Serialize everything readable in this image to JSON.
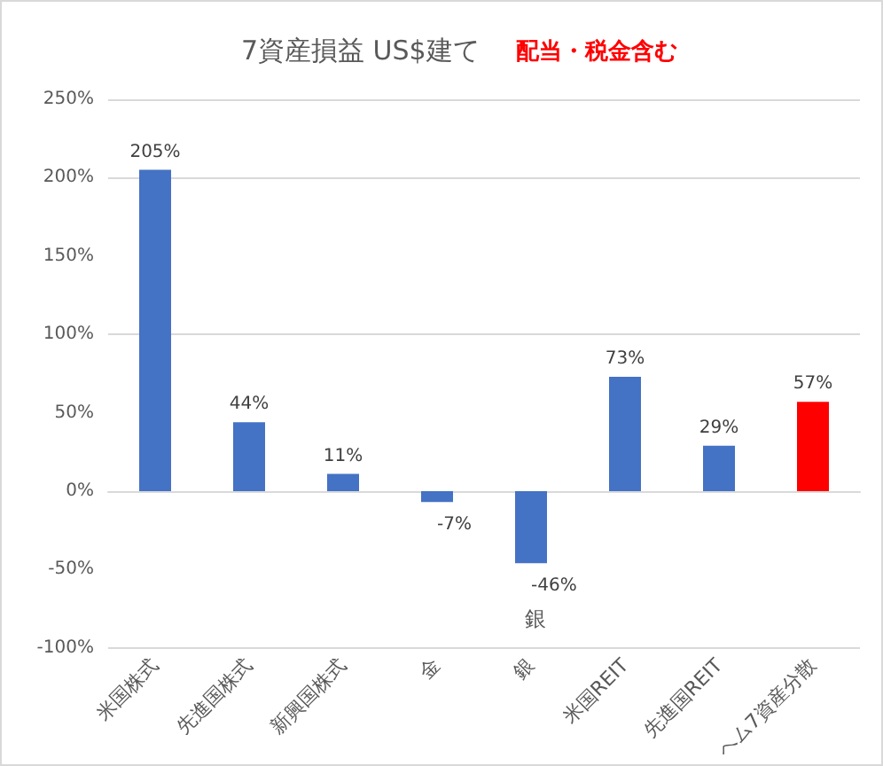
{
  "chart_data": {
    "type": "bar",
    "title": "7資産損益 US$建て",
    "subtitle": "配当・税金含む",
    "categories": [
      "米国株式",
      "先進国株式",
      "新興国株式",
      "金",
      "銀",
      "米国REIT",
      "先進国REIT",
      "ヘム7資産分散"
    ],
    "values": [
      205,
      44,
      11,
      -7,
      -46,
      73,
      29,
      57
    ],
    "colors": [
      "#4472c4",
      "#4472c4",
      "#4472c4",
      "#4472c4",
      "#4472c4",
      "#4472c4",
      "#4472c4",
      "#ff0000"
    ],
    "value_labels": [
      "205%",
      "44%",
      "11%",
      "-7%",
      "-46%",
      "73%",
      "29%",
      "57%"
    ],
    "ylim": [
      -100,
      250
    ],
    "yticks": [
      {
        "value": -100,
        "label": "-100%"
      },
      {
        "value": -50,
        "label": "-50%"
      },
      {
        "value": 0,
        "label": "0%"
      },
      {
        "value": 50,
        "label": "50%"
      },
      {
        "value": 100,
        "label": "100%"
      },
      {
        "value": 150,
        "label": "150%"
      },
      {
        "value": 200,
        "label": "200%"
      },
      {
        "value": 250,
        "label": "250%"
      }
    ],
    "annotations": [
      "銀"
    ],
    "grid": "y"
  }
}
